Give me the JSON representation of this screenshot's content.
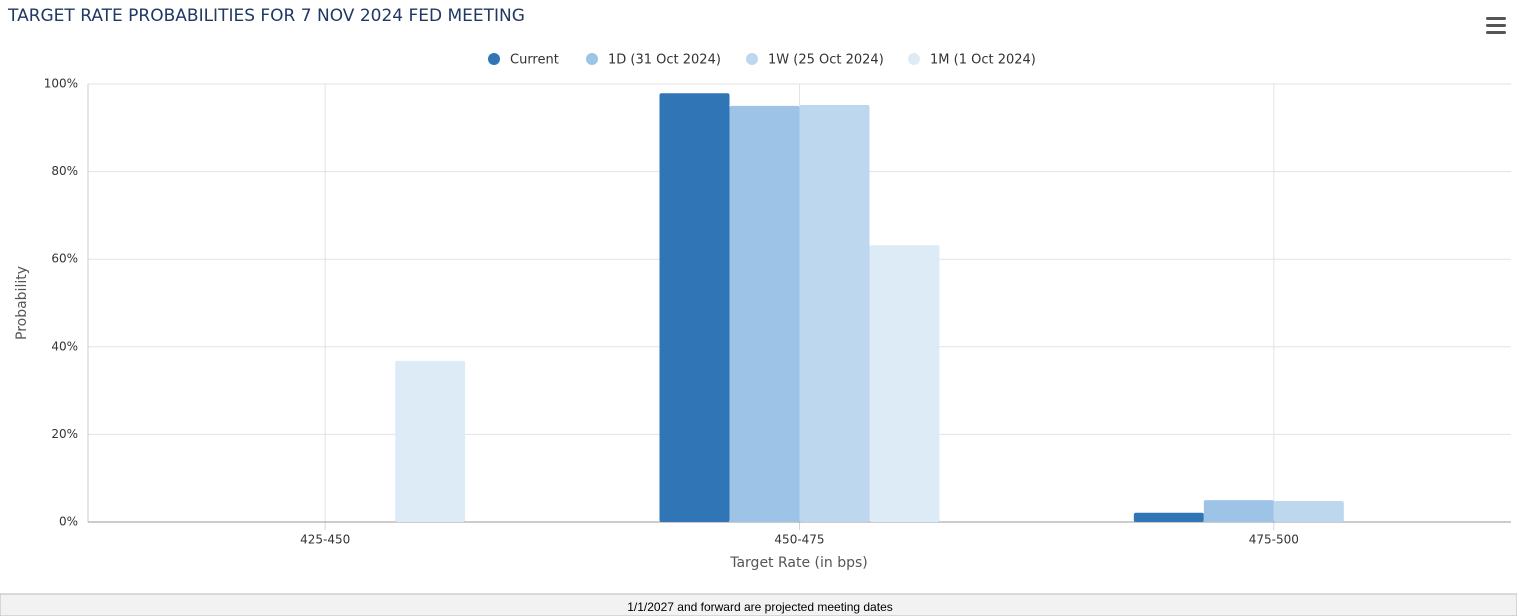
{
  "chart_data": {
    "type": "bar",
    "title": "TARGET RATE PROBABILITIES FOR 7 NOV 2024 FED MEETING",
    "categories": [
      "425-450",
      "450-475",
      "475-500"
    ],
    "series": [
      {
        "name": "Current",
        "color": "#3075b5",
        "values": [
          0,
          97.9,
          2.1
        ]
      },
      {
        "name": "1D (31 Oct 2024)",
        "color": "#9dc3e6",
        "values": [
          0,
          95.0,
          5.0
        ]
      },
      {
        "name": "1W (25 Oct 2024)",
        "color": "#bdd7ee",
        "values": [
          0,
          95.2,
          4.8
        ]
      },
      {
        "name": "1M (1 Oct 2024)",
        "color": "#ddebf7",
        "values": [
          36.8,
          63.2,
          0
        ]
      }
    ],
    "ylim": [
      0,
      100
    ],
    "yticks": [
      {
        "value": 0,
        "label": "0%"
      },
      {
        "value": 20,
        "label": "20%"
      },
      {
        "value": 40,
        "label": "40%"
      },
      {
        "value": 60,
        "label": "60%"
      },
      {
        "value": 80,
        "label": "80%"
      },
      {
        "value": 100,
        "label": "100%"
      }
    ],
    "y_label": "Probability",
    "x_label": "Target Rate (in bps)",
    "grid": true,
    "legend": "top"
  },
  "footer": "1/1/2027 and forward are projected meeting dates"
}
